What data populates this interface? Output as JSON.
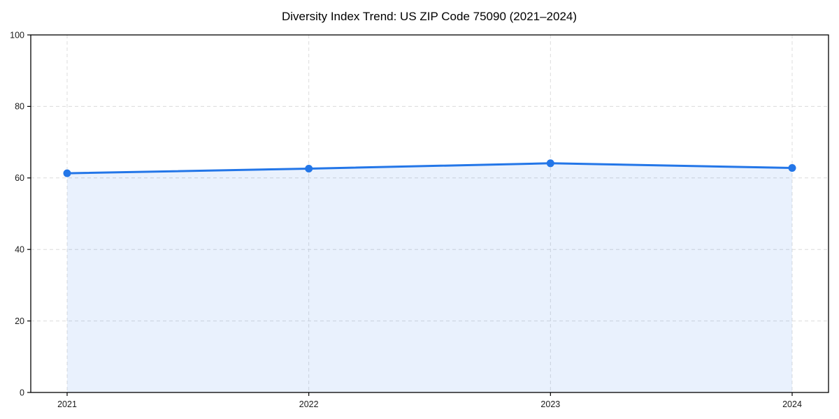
{
  "chart_data": {
    "type": "area",
    "title": "Diversity Index Trend: US ZIP Code 75090 (2021–2024)",
    "x": [
      "2021",
      "2022",
      "2023",
      "2024"
    ],
    "series": [
      {
        "name": "Diversity Index",
        "values": [
          61.3,
          62.6,
          64.1,
          62.8
        ]
      }
    ],
    "xlabel": "",
    "ylabel": "",
    "ylim": [
      0,
      100
    ],
    "yticks": [
      0,
      20,
      40,
      60,
      80,
      100
    ],
    "grid": "dashed-both-axes",
    "legend_position": "none",
    "colors": {
      "line": "#2376E8",
      "marker": "#2376E8",
      "fill": "#2376E8",
      "fill_opacity": 0.1,
      "grid": "#dcdcdc",
      "axis": "#000000",
      "tick_text": "#1a1a1a",
      "background": "#ffffff"
    }
  }
}
